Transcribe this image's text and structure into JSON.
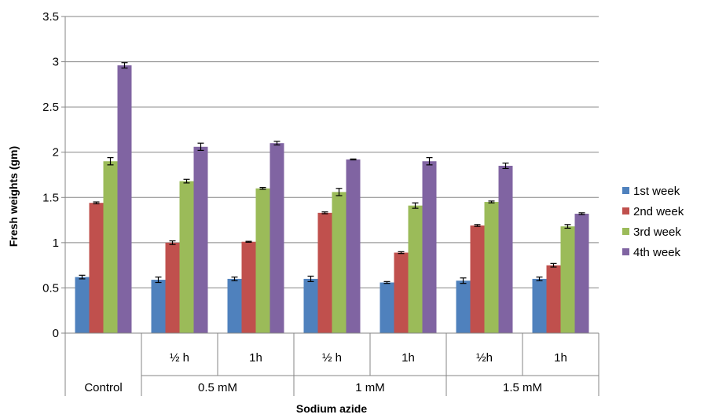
{
  "chart_data": {
    "type": "bar",
    "title": "",
    "xlabel": "Sodium azide",
    "ylabel": "Fresh weights (gm)",
    "ylim": [
      0,
      3.5
    ],
    "yticks": [
      "0",
      "0.5",
      "1",
      "1.5",
      "2",
      "2.5",
      "3",
      "3.5"
    ],
    "grid": true,
    "legend_position": "right",
    "categories": [
      "Control",
      "½ h",
      "1h",
      "½ h",
      "1h",
      "½h",
      "1h"
    ],
    "category_groups": [
      {
        "label": "Control",
        "span": 1
      },
      {
        "label": "0.5 mM",
        "span": 2
      },
      {
        "label": "1 mM",
        "span": 2
      },
      {
        "label": "1.5 mM",
        "span": 2
      }
    ],
    "series": [
      {
        "name": "1st week",
        "color": "#4F81BD",
        "values": [
          0.62,
          0.59,
          0.6,
          0.6,
          0.56,
          0.58,
          0.6
        ],
        "errors": [
          0.02,
          0.03,
          0.02,
          0.03,
          0.01,
          0.03,
          0.02
        ]
      },
      {
        "name": "2nd week",
        "color": "#C0504D",
        "values": [
          1.44,
          1.0,
          1.01,
          1.33,
          0.89,
          1.19,
          0.75
        ],
        "errors": [
          0.01,
          0.02,
          0.005,
          0.01,
          0.01,
          0.01,
          0.02
        ]
      },
      {
        "name": "3rd week",
        "color": "#9BBB59",
        "values": [
          1.9,
          1.68,
          1.6,
          1.56,
          1.41,
          1.45,
          1.18
        ],
        "errors": [
          0.04,
          0.02,
          0.01,
          0.04,
          0.03,
          0.01,
          0.02
        ]
      },
      {
        "name": "4th week",
        "color": "#8064A2",
        "values": [
          2.96,
          2.06,
          2.1,
          1.92,
          1.9,
          1.85,
          1.32
        ],
        "errors": [
          0.03,
          0.04,
          0.02,
          0.005,
          0.04,
          0.03,
          0.01
        ]
      }
    ]
  }
}
